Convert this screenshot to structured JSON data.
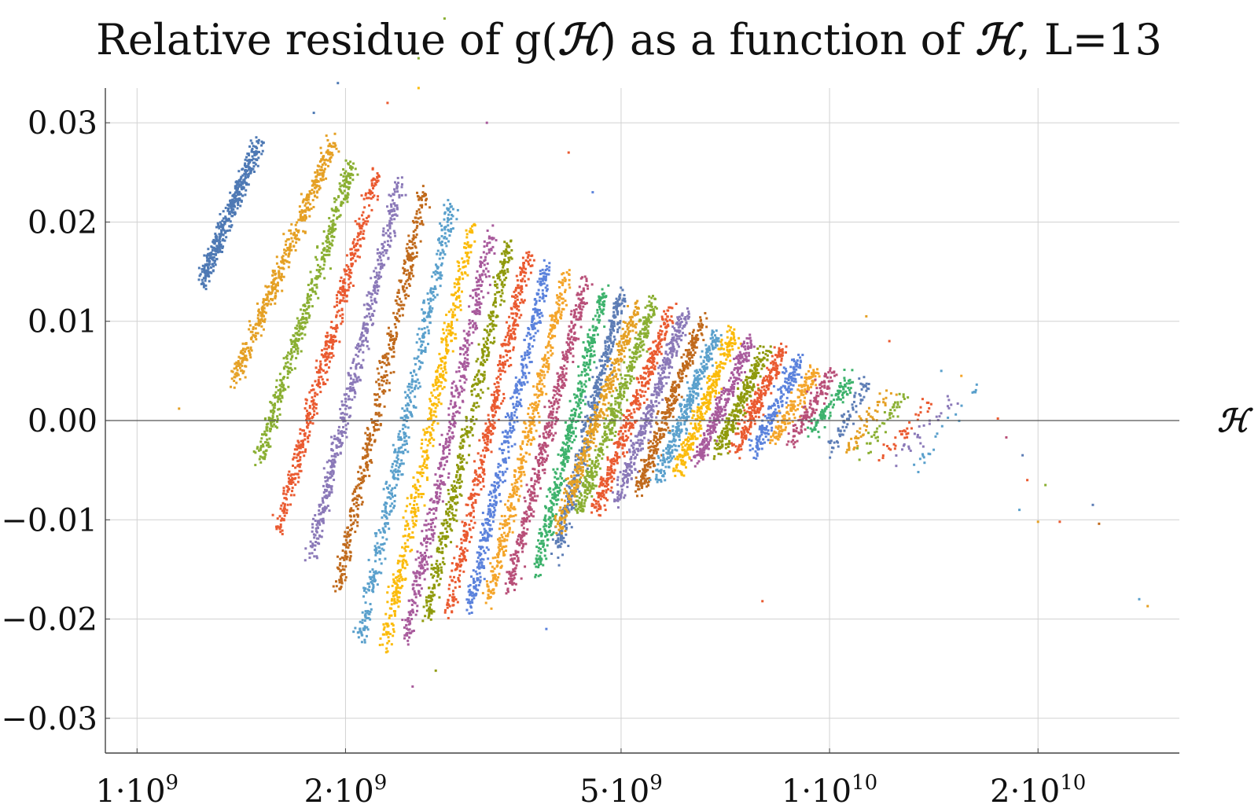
{
  "chart_data": {
    "type": "scatter",
    "title": {
      "prefix": "Relative residue of g(",
      "symbol": "ℋ",
      "middle": ") as a function of ",
      "suffix": ", L=13"
    },
    "xlabel": "ℋ",
    "ylabel": "",
    "x_scale": "log",
    "xlim": [
      900000000,
      32000000000
    ],
    "ylim": [
      -0.0335,
      0.0335
    ],
    "grid": true,
    "legend": "none",
    "zero_line": true,
    "x_ticks": [
      {
        "value": 1000000000,
        "base": "1·10",
        "exp": "9"
      },
      {
        "value": 2000000000,
        "base": "2·10",
        "exp": "9"
      },
      {
        "value": 5000000000,
        "base": "5·10",
        "exp": "9"
      },
      {
        "value": 10000000000,
        "base": "1·10",
        "exp": "10"
      },
      {
        "value": 20000000000,
        "base": "2·10",
        "exp": "10"
      }
    ],
    "y_ticks": [
      {
        "value": 0.03,
        "label": "0.03"
      },
      {
        "value": 0.02,
        "label": "0.02"
      },
      {
        "value": 0.01,
        "label": "0.01"
      },
      {
        "value": 0.0,
        "label": "0.00"
      },
      {
        "value": -0.01,
        "label": "−0.01"
      },
      {
        "value": -0.02,
        "label": "−0.02"
      },
      {
        "value": -0.03,
        "label": "−0.03"
      }
    ],
    "series": [
      {
        "color": "#4e79b4",
        "x_low": 1240000000.0,
        "x_high": 1500000000.0,
        "y_low": 0.014,
        "y_high": 0.028,
        "points": 420
      },
      {
        "color": "#e5a024",
        "x_low": 1380000000.0,
        "x_high": 1920000000.0,
        "y_low": 0.004,
        "y_high": 0.028,
        "points": 460
      },
      {
        "color": "#8aaf32",
        "x_low": 1500000000.0,
        "x_high": 2050000000.0,
        "y_low": -0.004,
        "y_high": 0.026,
        "points": 460
      },
      {
        "color": "#ea5a30",
        "x_low": 1600000000.0,
        "x_high": 2220000000.0,
        "y_low": -0.011,
        "y_high": 0.025,
        "points": 480
      },
      {
        "color": "#8b79b8",
        "x_low": 1780000000.0,
        "x_high": 2400000000.0,
        "y_low": -0.014,
        "y_high": 0.024,
        "points": 480
      },
      {
        "color": "#c06a1c",
        "x_low": 1950000000.0,
        "x_high": 2600000000.0,
        "y_low": -0.017,
        "y_high": 0.023,
        "points": 480
      },
      {
        "color": "#5aa0cc",
        "x_low": 2100000000.0,
        "x_high": 2850000000.0,
        "y_low": -0.022,
        "y_high": 0.022,
        "points": 480
      },
      {
        "color": "#fbbb0a",
        "x_low": 2280000000.0,
        "x_high": 3050000000.0,
        "y_low": -0.023,
        "y_high": 0.02,
        "points": 480
      },
      {
        "color": "#a85a9c",
        "x_low": 2450000000.0,
        "x_high": 3250000000.0,
        "y_low": -0.022,
        "y_high": 0.019,
        "points": 480
      },
      {
        "color": "#8f9a0c",
        "x_low": 2620000000.0,
        "x_high": 3450000000.0,
        "y_low": -0.02,
        "y_high": 0.018,
        "points": 460
      },
      {
        "color": "#ea5a30",
        "x_low": 2820000000.0,
        "x_high": 3680000000.0,
        "y_low": -0.019,
        "y_high": 0.017,
        "points": 460
      },
      {
        "color": "#5b82dc",
        "x_low": 3020000000.0,
        "x_high": 3920000000.0,
        "y_low": -0.019,
        "y_high": 0.016,
        "points": 460
      },
      {
        "color": "#f4a52a",
        "x_low": 3220000000.0,
        "x_high": 4180000000.0,
        "y_low": -0.018,
        "y_high": 0.015,
        "points": 440
      },
      {
        "color": "#b84f78",
        "x_low": 3440000000.0,
        "x_high": 4450000000.0,
        "y_low": -0.017,
        "y_high": 0.014,
        "points": 440
      },
      {
        "color": "#3db26c",
        "x_low": 3780000000.0,
        "x_high": 4720000000.0,
        "y_low": -0.015,
        "y_high": 0.013,
        "points": 420
      },
      {
        "color": "#5d7db5",
        "x_low": 4050000000.0,
        "x_high": 5020000000.0,
        "y_low": -0.013,
        "y_high": 0.013,
        "points": 420
      },
      {
        "color": "#e5a024",
        "x_low": 4050000000.0,
        "x_high": 5300000000.0,
        "y_low": -0.011,
        "y_high": 0.012,
        "points": 400
      },
      {
        "color": "#8aaf32",
        "x_low": 4350000000.0,
        "x_high": 5600000000.0,
        "y_low": -0.009,
        "y_high": 0.012,
        "points": 400
      },
      {
        "color": "#ea5a30",
        "x_low": 4600000000.0,
        "x_high": 5900000000.0,
        "y_low": -0.009,
        "y_high": 0.011,
        "points": 380
      },
      {
        "color": "#8b79b8",
        "x_low": 4950000000.0,
        "x_high": 6200000000.0,
        "y_low": -0.008,
        "y_high": 0.011,
        "points": 360
      },
      {
        "color": "#c06a1c",
        "x_low": 5300000000.0,
        "x_high": 6550000000.0,
        "y_low": -0.007,
        "y_high": 0.01,
        "points": 340
      },
      {
        "color": "#5aa0cc",
        "x_low": 5650000000.0,
        "x_high": 6900000000.0,
        "y_low": -0.006,
        "y_high": 0.009,
        "points": 320
      },
      {
        "color": "#fbbb0a",
        "x_low": 6050000000.0,
        "x_high": 7300000000.0,
        "y_low": -0.005,
        "y_high": 0.009,
        "points": 300
      },
      {
        "color": "#a85a9c",
        "x_low": 6450000000.0,
        "x_high": 7700000000.0,
        "y_low": -0.004,
        "y_high": 0.008,
        "points": 280
      },
      {
        "color": "#8f9a0c",
        "x_low": 6900000000.0,
        "x_high": 8100000000.0,
        "y_low": -0.003,
        "y_high": 0.007,
        "points": 260
      },
      {
        "color": "#ea5a30",
        "x_low": 7300000000.0,
        "x_high": 8550000000.0,
        "y_low": -0.003,
        "y_high": 0.007,
        "points": 240
      },
      {
        "color": "#5b82dc",
        "x_low": 7800000000.0,
        "x_high": 9050000000.0,
        "y_low": -0.003,
        "y_high": 0.006,
        "points": 200
      },
      {
        "color": "#f4a52a",
        "x_low": 8300000000.0,
        "x_high": 9550000000.0,
        "y_low": -0.002,
        "y_high": 0.005,
        "points": 160
      },
      {
        "color": "#b84f78",
        "x_low": 8800000000.0,
        "x_high": 10100000000.0,
        "y_low": -0.002,
        "y_high": 0.005,
        "points": 130
      },
      {
        "color": "#3db26c",
        "x_low": 9400000000.0,
        "x_high": 10700000000.0,
        "y_low": -0.001,
        "y_high": 0.004,
        "points": 100
      },
      {
        "color": "#5d7db5",
        "x_low": 10000000000.0,
        "x_high": 11400000000.0,
        "y_low": -0.003,
        "y_high": 0.004,
        "points": 70
      },
      {
        "color": "#e5a024",
        "x_low": 10600000000.0,
        "x_high": 12200000000.0,
        "y_low": -0.003,
        "y_high": 0.003,
        "points": 55
      },
      {
        "color": "#8aaf32",
        "x_low": 11200000000.0,
        "x_high": 13000000000.0,
        "y_low": -0.003,
        "y_high": 0.003,
        "points": 45
      },
      {
        "color": "#ea5a30",
        "x_low": 11800000000.0,
        "x_high": 14000000000.0,
        "y_low": -0.004,
        "y_high": 0.002,
        "points": 35
      },
      {
        "color": "#8b79b8",
        "x_low": 12500000000.0,
        "x_high": 15000000000.0,
        "y_low": -0.004,
        "y_high": 0.002,
        "points": 28
      },
      {
        "color": "#5aa0cc",
        "x_low": 13200000000.0,
        "x_high": 16500000000.0,
        "y_low": -0.005,
        "y_high": 0.004,
        "points": 22
      }
    ],
    "outliers": [
      {
        "x": 2780000000.0,
        "y": 0.0405,
        "color": "#8aaf32"
      },
      {
        "x": 2550000000.0,
        "y": 0.0365,
        "color": "#8aaf32"
      },
      {
        "x": 1950000000.0,
        "y": 0.034,
        "color": "#4e79b4"
      },
      {
        "x": 2550000000.0,
        "y": 0.0335,
        "color": "#fbbb0a"
      },
      {
        "x": 2300000000.0,
        "y": 0.032,
        "color": "#ea5a30"
      },
      {
        "x": 1800000000.0,
        "y": 0.031,
        "color": "#4e79b4"
      },
      {
        "x": 3200000000.0,
        "y": 0.03,
        "color": "#a85a9c"
      },
      {
        "x": 4200000000.0,
        "y": 0.027,
        "color": "#ea5a30"
      },
      {
        "x": 4550000000.0,
        "y": 0.023,
        "color": "#5b82dc"
      },
      {
        "x": 11300000000.0,
        "y": 0.0105,
        "color": "#e5a024"
      },
      {
        "x": 12200000000.0,
        "y": 0.008,
        "color": "#ea5a30"
      },
      {
        "x": 14500000000.0,
        "y": 0.005,
        "color": "#5aa0cc"
      },
      {
        "x": 15500000000.0,
        "y": 0.0045,
        "color": "#f4a52a"
      },
      {
        "x": 17500000000.0,
        "y": 0.0002,
        "color": "#ea5a30"
      },
      {
        "x": 18000000000.0,
        "y": -0.0017,
        "color": "#b84f78"
      },
      {
        "x": 19000000000.0,
        "y": -0.0035,
        "color": "#5d7db5"
      },
      {
        "x": 19300000000.0,
        "y": -0.006,
        "color": "#ea5a30"
      },
      {
        "x": 20500000000.0,
        "y": -0.0065,
        "color": "#8aaf32"
      },
      {
        "x": 18800000000.0,
        "y": -0.009,
        "color": "#5aa0cc"
      },
      {
        "x": 20000000000.0,
        "y": -0.0102,
        "color": "#e5a024"
      },
      {
        "x": 21500000000.0,
        "y": -0.0102,
        "color": "#ea5a30"
      },
      {
        "x": 24000000000.0,
        "y": -0.0085,
        "color": "#5d7db5"
      },
      {
        "x": 24500000000.0,
        "y": -0.0104,
        "color": "#c06a1c"
      },
      {
        "x": 28000000000.0,
        "y": -0.018,
        "color": "#5aa0cc"
      },
      {
        "x": 28800000000.0,
        "y": -0.0187,
        "color": "#e5a024"
      },
      {
        "x": 8000000000.0,
        "y": -0.0182,
        "color": "#ea5a30"
      },
      {
        "x": 3900000000.0,
        "y": -0.021,
        "color": "#5b82dc"
      },
      {
        "x": 2700000000.0,
        "y": -0.0252,
        "color": "#8f9a0c"
      },
      {
        "x": 2500000000.0,
        "y": -0.0268,
        "color": "#a85a9c"
      },
      {
        "x": 1150000000.0,
        "y": 0.0012,
        "color": "#e5a024"
      }
    ]
  }
}
